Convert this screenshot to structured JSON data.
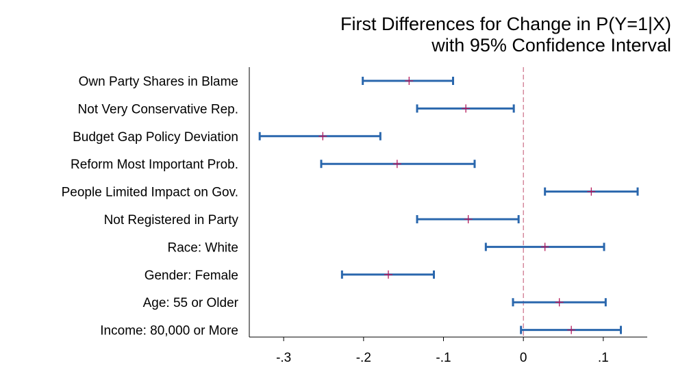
{
  "chart_data": {
    "type": "interval",
    "title": [
      "First Differences for Change in P(Y=1|X)",
      "with 95% Confidence Interval"
    ],
    "categories": [
      "Own Party Shares in Blame",
      "Not Very Conservative Rep.",
      "Budget Gap Policy Deviation",
      "Reform Most Important Prob.",
      "People Limited Impact on Gov.",
      "Not Registered in Party",
      "Race: White",
      "Gender: Female",
      "Age: 55 or Older",
      "Income: 80,000 or More"
    ],
    "estimate": [
      -0.143,
      -0.072,
      -0.251,
      -0.158,
      0.085,
      -0.069,
      0.027,
      -0.169,
      0.045,
      0.06
    ],
    "lower": [
      -0.201,
      -0.133,
      -0.33,
      -0.253,
      0.027,
      -0.133,
      -0.047,
      -0.227,
      -0.013,
      -0.003
    ],
    "upper": [
      -0.088,
      -0.012,
      -0.179,
      -0.061,
      0.143,
      -0.006,
      0.101,
      -0.112,
      0.103,
      0.122
    ],
    "interval_color": "#2a67ad",
    "estimate_color": "#b5185a",
    "xlim": [
      -0.343,
      0.155
    ],
    "xticks": [
      {
        "value": -0.3,
        "label": "-.3"
      },
      {
        "value": -0.2,
        "label": "-.2"
      },
      {
        "value": -0.1,
        "label": "-.1"
      },
      0,
      {
        "value": 0.1,
        "label": ".1"
      }
    ],
    "reference_line": 0,
    "reference_color": "#c0506e"
  }
}
